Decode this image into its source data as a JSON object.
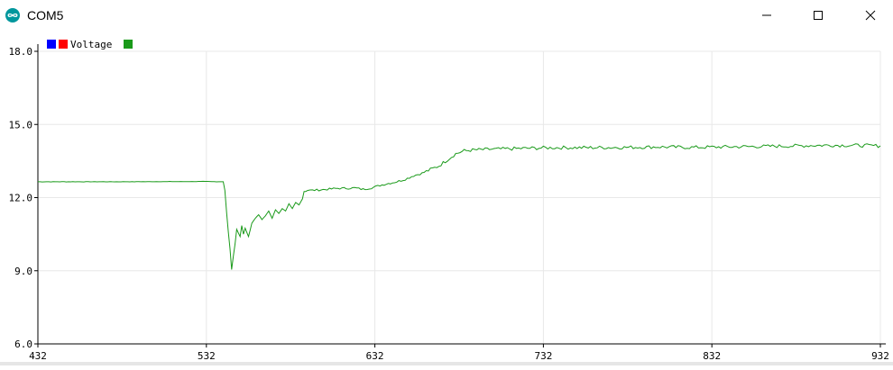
{
  "window": {
    "title": "COM5",
    "icon": "arduino-infinity-icon",
    "controls": [
      "minimize-icon",
      "maximize-icon",
      "close-icon"
    ]
  },
  "colors": {
    "accent": "#00979d",
    "series": "#1a9a1a",
    "legend_swatches": [
      "#0000ff",
      "#ff0000",
      "#1a9a1a"
    ],
    "axis": "#000000",
    "grid": "#e8e8e8"
  },
  "legend": {
    "label": "Voltage"
  },
  "chart_data": {
    "type": "line",
    "xlim": [
      432,
      932
    ],
    "ylim": [
      6.0,
      18.0
    ],
    "x_ticks": [
      "432",
      "532",
      "632",
      "732",
      "832",
      "932"
    ],
    "y_ticks": [
      "6.0",
      "9.0",
      "12.0",
      "15.0",
      "18.0"
    ],
    "grid": true,
    "legend_position": "top-left",
    "series": [
      {
        "name": "Voltage",
        "x": [
          432,
          480,
          530,
          542,
          543,
          544,
          545,
          546,
          547,
          548,
          549,
          550,
          551,
          552,
          553,
          554,
          555,
          557,
          559,
          561,
          563,
          565,
          567,
          569,
          571,
          573,
          575,
          577,
          579,
          581,
          583,
          585,
          587,
          589,
          590,
          592,
          595,
          600,
          605,
          610,
          615,
          620,
          625,
          630,
          635,
          640,
          645,
          650,
          655,
          660,
          665,
          670,
          675,
          680,
          685,
          690,
          700,
          720,
          740,
          760,
          780,
          800,
          820,
          840,
          860,
          880,
          900,
          920,
          932
        ],
        "y": [
          12.65,
          12.65,
          12.66,
          12.65,
          12.3,
          11.4,
          10.6,
          9.9,
          9.05,
          9.6,
          10.1,
          10.7,
          10.55,
          10.4,
          10.85,
          10.5,
          10.75,
          10.4,
          10.95,
          11.15,
          11.3,
          11.1,
          11.25,
          11.45,
          11.15,
          11.5,
          11.35,
          11.55,
          11.45,
          11.75,
          11.55,
          11.8,
          11.7,
          11.95,
          12.25,
          12.3,
          12.3,
          12.32,
          12.35,
          12.38,
          12.38,
          12.4,
          12.34,
          12.4,
          12.5,
          12.58,
          12.65,
          12.75,
          12.9,
          13.0,
          13.15,
          13.3,
          13.55,
          13.8,
          13.92,
          13.95,
          13.98,
          14.02,
          14.05,
          14.05,
          14.06,
          14.08,
          14.06,
          14.08,
          14.1,
          14.12,
          14.15,
          14.14,
          14.12
        ]
      }
    ]
  }
}
